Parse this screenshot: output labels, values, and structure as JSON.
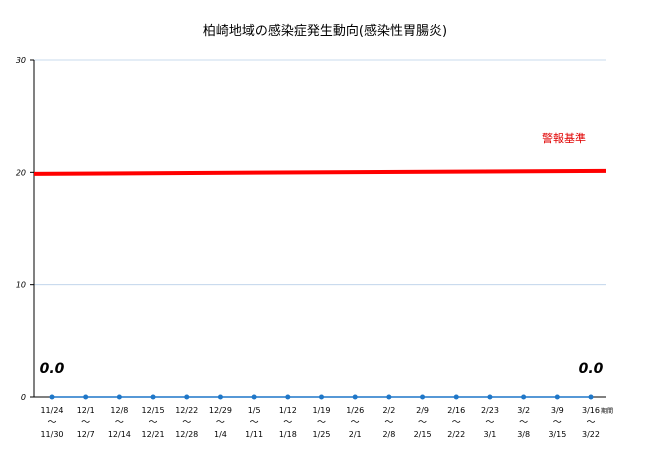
{
  "chart_data": {
    "type": "line",
    "title": "柏崎地域の感染症発生動向(感染性胃腸炎)",
    "ylim": [
      0,
      30
    ],
    "yticks": [
      0,
      10,
      20,
      30
    ],
    "grid": true,
    "x_unit_label": "期間",
    "categories": [
      {
        "start": "11/24",
        "end": "11/30"
      },
      {
        "start": "12/1",
        "end": "12/7"
      },
      {
        "start": "12/8",
        "end": "12/14"
      },
      {
        "start": "12/15",
        "end": "12/21"
      },
      {
        "start": "12/22",
        "end": "12/28"
      },
      {
        "start": "12/29",
        "end": "1/4"
      },
      {
        "start": "1/5",
        "end": "1/11"
      },
      {
        "start": "1/12",
        "end": "1/18"
      },
      {
        "start": "1/19",
        "end": "1/25"
      },
      {
        "start": "1/26",
        "end": "2/1"
      },
      {
        "start": "2/2",
        "end": "2/8"
      },
      {
        "start": "2/9",
        "end": "2/15"
      },
      {
        "start": "2/16",
        "end": "2/22"
      },
      {
        "start": "2/23",
        "end": "3/1"
      },
      {
        "start": "3/2",
        "end": "3/8"
      },
      {
        "start": "3/9",
        "end": "3/15"
      },
      {
        "start": "3/16",
        "end": "3/22"
      }
    ],
    "separator": "～",
    "series": [
      {
        "values": [
          0,
          0,
          0,
          0,
          0,
          0,
          0,
          0,
          0,
          0,
          0,
          0,
          0,
          0,
          0,
          0,
          0
        ],
        "color": "#1f77c8"
      }
    ],
    "data_labels": [
      {
        "index": 0,
        "text": "0.0"
      },
      {
        "index": 16,
        "text": "0.0"
      }
    ],
    "reference_line": {
      "name": "警報基準",
      "value": 20,
      "color": "#ff0000"
    }
  }
}
